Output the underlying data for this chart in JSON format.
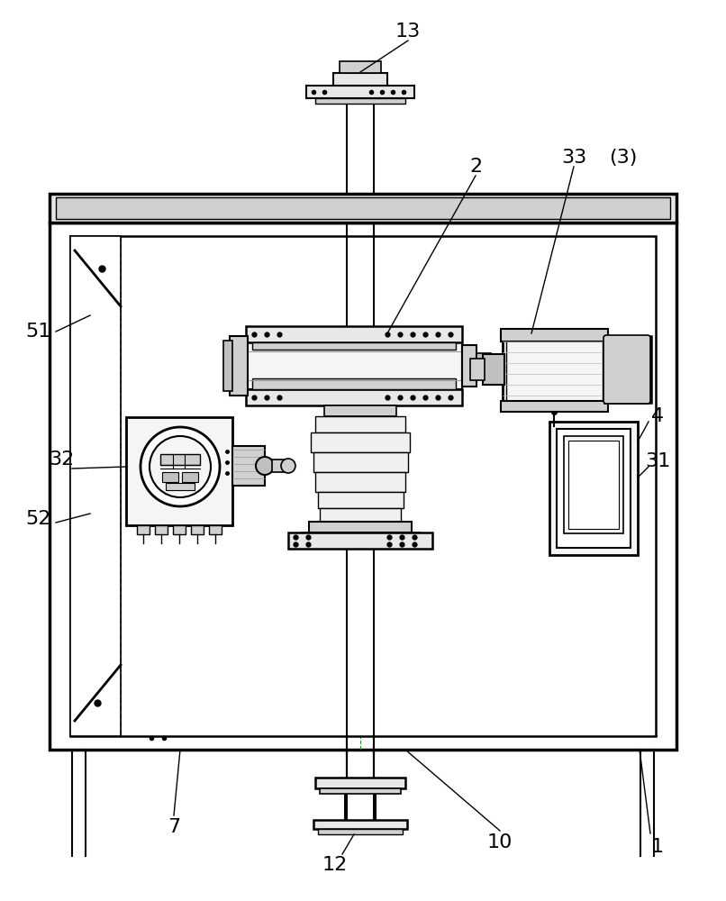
{
  "bg_color": "#ffffff",
  "lc": "#000000",
  "gray1": "#e8e8e8",
  "gray2": "#d0d0d0",
  "gray3": "#c0c0c0",
  "gray4": "#f0f0f0",
  "gray5": "#f5f5f5"
}
